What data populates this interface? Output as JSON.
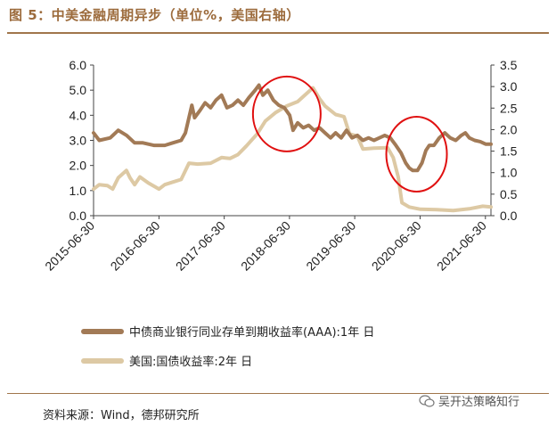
{
  "header": {
    "title": "图 5：中美金融周期异步（单位%，美国右轴）"
  },
  "footer": {
    "source": "资料来源：Wind，德邦研究所",
    "watermark": "吴开达策略知行"
  },
  "colors": {
    "china_series": "#a27a56",
    "us_series": "#ddc9a4",
    "circle": "#e01010",
    "frame": "#a0764b"
  },
  "chart_data": {
    "type": "line",
    "x_ticks": [
      "2015-06-30",
      "2016-06-30",
      "2017-06-30",
      "2018-06-30",
      "2019-06-30",
      "2020-06-30",
      "2021-06-30"
    ],
    "y_left": {
      "ticks": [
        "0.0",
        "1.0",
        "2.0",
        "3.0",
        "4.0",
        "5.0",
        "6.0"
      ],
      "lim": [
        0,
        6
      ]
    },
    "y_right": {
      "ticks": [
        "0.0",
        "0.5",
        "1.0",
        "1.5",
        "2.0",
        "2.5",
        "3.0",
        "3.5"
      ],
      "lim": [
        0,
        3.5
      ]
    },
    "xlim": [
      "2015-06-30",
      "2021-07-31"
    ],
    "annotations": [
      {
        "shape": "ellipse",
        "center": [
          "2018-06-15",
          4.05
        ],
        "axis": "left"
      },
      {
        "shape": "ellipse",
        "center": [
          "2020-06-10",
          2.45
        ],
        "axis": "left"
      }
    ],
    "series": [
      {
        "name": "中债商业银行同业存单到期收益率(AAA):1年 日",
        "axis": "left",
        "points": [
          [
            "2015-06-30",
            3.3
          ],
          [
            "2015-08-01",
            3.0
          ],
          [
            "2015-10-01",
            3.1
          ],
          [
            "2015-11-15",
            3.4
          ],
          [
            "2016-01-01",
            3.2
          ],
          [
            "2016-02-15",
            2.9
          ],
          [
            "2016-04-01",
            2.9
          ],
          [
            "2016-06-01",
            2.8
          ],
          [
            "2016-08-01",
            2.8
          ],
          [
            "2016-09-15",
            2.9
          ],
          [
            "2016-11-01",
            3.0
          ],
          [
            "2016-11-25",
            3.3
          ],
          [
            "2016-12-31",
            4.4
          ],
          [
            "2017-01-15",
            3.9
          ],
          [
            "2017-02-15",
            4.2
          ],
          [
            "2017-03-15",
            4.5
          ],
          [
            "2017-04-15",
            4.3
          ],
          [
            "2017-05-15",
            4.6
          ],
          [
            "2017-06-15",
            4.8
          ],
          [
            "2017-07-15",
            4.3
          ],
          [
            "2017-08-15",
            4.4
          ],
          [
            "2017-09-15",
            4.6
          ],
          [
            "2017-10-15",
            4.4
          ],
          [
            "2017-11-15",
            4.7
          ],
          [
            "2017-12-20",
            5.0
          ],
          [
            "2018-01-10",
            5.2
          ],
          [
            "2018-02-01",
            4.8
          ],
          [
            "2018-03-01",
            5.0
          ],
          [
            "2018-04-01",
            4.6
          ],
          [
            "2018-05-01",
            4.4
          ],
          [
            "2018-06-01",
            4.3
          ],
          [
            "2018-07-01",
            4.0
          ],
          [
            "2018-07-20",
            3.4
          ],
          [
            "2018-08-15",
            3.7
          ],
          [
            "2018-09-15",
            3.5
          ],
          [
            "2018-10-15",
            3.6
          ],
          [
            "2018-11-15",
            3.4
          ],
          [
            "2018-12-15",
            3.5
          ],
          [
            "2019-01-15",
            3.3
          ],
          [
            "2019-02-15",
            3.1
          ],
          [
            "2019-03-15",
            3.3
          ],
          [
            "2019-04-15",
            3.1
          ],
          [
            "2019-05-15",
            3.4
          ],
          [
            "2019-06-15",
            3.1
          ],
          [
            "2019-07-15",
            3.2
          ],
          [
            "2019-08-15",
            3.0
          ],
          [
            "2019-09-15",
            3.1
          ],
          [
            "2019-10-15",
            3.0
          ],
          [
            "2019-11-15",
            3.1
          ],
          [
            "2019-12-15",
            3.2
          ],
          [
            "2020-01-15",
            3.1
          ],
          [
            "2020-02-15",
            2.8
          ],
          [
            "2020-03-15",
            2.5
          ],
          [
            "2020-04-10",
            2.1
          ],
          [
            "2020-04-30",
            1.9
          ],
          [
            "2020-05-20",
            1.8
          ],
          [
            "2020-06-15",
            1.8
          ],
          [
            "2020-07-10",
            2.1
          ],
          [
            "2020-08-01",
            2.6
          ],
          [
            "2020-08-20",
            2.8
          ],
          [
            "2020-09-15",
            2.8
          ],
          [
            "2020-10-15",
            3.1
          ],
          [
            "2020-11-15",
            3.3
          ],
          [
            "2020-12-15",
            3.1
          ],
          [
            "2021-01-15",
            3.0
          ],
          [
            "2021-02-15",
            3.2
          ],
          [
            "2021-03-10",
            3.3
          ],
          [
            "2021-04-01",
            3.1
          ],
          [
            "2021-05-01",
            3.0
          ],
          [
            "2021-06-01",
            2.95
          ],
          [
            "2021-07-01",
            2.85
          ],
          [
            "2021-07-31",
            2.85
          ]
        ]
      },
      {
        "name": "美国:国债收益率:2年 日",
        "axis": "right",
        "points": [
          [
            "2015-06-30",
            0.62
          ],
          [
            "2015-08-01",
            0.72
          ],
          [
            "2015-09-15",
            0.7
          ],
          [
            "2015-10-15",
            0.62
          ],
          [
            "2015-11-15",
            0.88
          ],
          [
            "2015-12-31",
            1.05
          ],
          [
            "2016-01-20",
            0.88
          ],
          [
            "2016-02-15",
            0.72
          ],
          [
            "2016-03-15",
            0.9
          ],
          [
            "2016-05-01",
            0.76
          ],
          [
            "2016-06-30",
            0.62
          ],
          [
            "2016-08-01",
            0.72
          ],
          [
            "2016-09-15",
            0.78
          ],
          [
            "2016-11-01",
            0.84
          ],
          [
            "2016-12-15",
            1.22
          ],
          [
            "2017-02-01",
            1.2
          ],
          [
            "2017-04-15",
            1.22
          ],
          [
            "2017-06-15",
            1.35
          ],
          [
            "2017-08-01",
            1.33
          ],
          [
            "2017-09-15",
            1.42
          ],
          [
            "2017-11-01",
            1.62
          ],
          [
            "2017-12-31",
            1.9
          ],
          [
            "2018-02-15",
            2.2
          ],
          [
            "2018-04-15",
            2.4
          ],
          [
            "2018-06-15",
            2.55
          ],
          [
            "2018-08-15",
            2.65
          ],
          [
            "2018-10-15",
            2.88
          ],
          [
            "2018-11-08",
            2.97
          ],
          [
            "2018-12-15",
            2.72
          ],
          [
            "2019-01-15",
            2.55
          ],
          [
            "2019-03-15",
            2.35
          ],
          [
            "2019-05-01",
            2.3
          ],
          [
            "2019-06-01",
            1.9
          ],
          [
            "2019-07-15",
            1.85
          ],
          [
            "2019-08-15",
            1.55
          ],
          [
            "2019-10-15",
            1.57
          ],
          [
            "2019-12-31",
            1.58
          ],
          [
            "2020-01-31",
            1.35
          ],
          [
            "2020-02-28",
            0.9
          ],
          [
            "2020-03-20",
            0.3
          ],
          [
            "2020-04-30",
            0.2
          ],
          [
            "2020-07-01",
            0.15
          ],
          [
            "2020-10-01",
            0.14
          ],
          [
            "2021-01-01",
            0.12
          ],
          [
            "2021-04-01",
            0.16
          ],
          [
            "2021-06-15",
            0.22
          ],
          [
            "2021-07-31",
            0.2
          ]
        ]
      }
    ]
  }
}
